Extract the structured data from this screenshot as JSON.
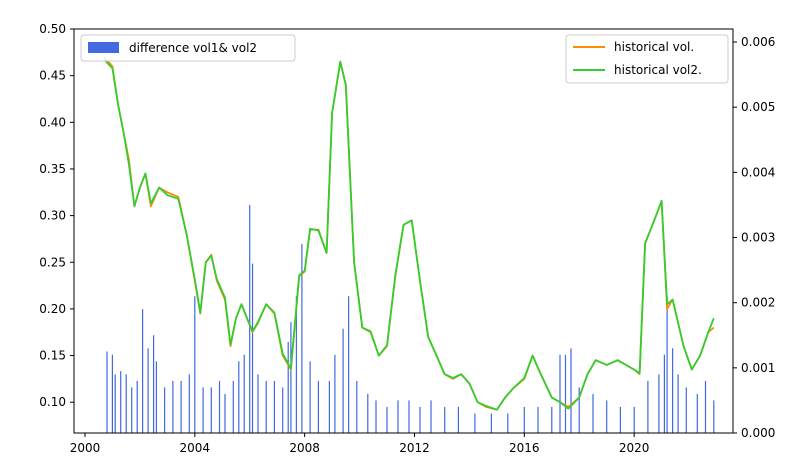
{
  "chart_data": {
    "type": "line",
    "xlim": [
      1999.6,
      2023.6
    ],
    "xticks": [
      2000,
      2004,
      2008,
      2012,
      2016,
      2020
    ],
    "ylim_left": [
      0.067,
      0.5
    ],
    "yticks_left": [
      "0.10",
      "0.15",
      "0.20",
      "0.25",
      "0.30",
      "0.35",
      "0.40",
      "0.45",
      "0.50"
    ],
    "ylim_right": [
      0,
      0.0062
    ],
    "yticks_right": [
      "0.000",
      "0.001",
      "0.002",
      "0.003",
      "0.004",
      "0.005",
      "0.006"
    ],
    "legend_left": {
      "placement": "top-left",
      "label": "difference vol1& vol2",
      "color": "#4169E1"
    },
    "legend_right": {
      "placement": "top-right",
      "entries": [
        {
          "label": "historical vol.",
          "color": "#ff8c00"
        },
        {
          "label": "historical vol2.",
          "color": "#32cd32"
        }
      ]
    },
    "series": [
      {
        "name": "historical vol.",
        "axis": "left",
        "color": "#ff8c00",
        "x": [
          2000.7,
          2001.0,
          2001.2,
          2001.4,
          2001.6,
          2001.8,
          2002.0,
          2002.2,
          2002.4,
          2002.7,
          2003.0,
          2003.4,
          2003.7,
          2004.0,
          2004.2,
          2004.4,
          2004.6,
          2004.8,
          2005.1,
          2005.3,
          2005.5,
          2005.7,
          2005.9,
          2006.1,
          2006.3,
          2006.6,
          2006.9,
          2007.2,
          2007.5,
          2007.8,
          2008.0,
          2008.2,
          2008.5,
          2008.8,
          2009.0,
          2009.3,
          2009.5,
          2009.8,
          2010.1,
          2010.4,
          2010.7,
          2011.0,
          2011.3,
          2011.6,
          2011.9,
          2012.2,
          2012.5,
          2012.8,
          2013.1,
          2013.4,
          2013.7,
          2014.0,
          2014.3,
          2014.6,
          2015.0,
          2015.3,
          2015.6,
          2016.0,
          2016.3,
          2016.6,
          2017.0,
          2017.3,
          2017.6,
          2018.0,
          2018.3,
          2018.6,
          2019.0,
          2019.4,
          2019.7,
          2020.0,
          2020.2,
          2020.4,
          2020.8,
          2021.0,
          2021.2,
          2021.4,
          2021.8,
          2022.1,
          2022.4,
          2022.7,
          2022.9
        ],
        "values": [
          0.47,
          0.46,
          0.42,
          0.39,
          0.36,
          0.31,
          0.33,
          0.345,
          0.31,
          0.33,
          0.325,
          0.32,
          0.28,
          0.23,
          0.195,
          0.25,
          0.258,
          0.23,
          0.21,
          0.16,
          0.19,
          0.205,
          0.19,
          0.175,
          0.185,
          0.205,
          0.195,
          0.15,
          0.135,
          0.235,
          0.24,
          0.285,
          0.285,
          0.26,
          0.41,
          0.465,
          0.44,
          0.25,
          0.18,
          0.175,
          0.15,
          0.16,
          0.235,
          0.29,
          0.295,
          0.23,
          0.17,
          0.15,
          0.13,
          0.125,
          0.13,
          0.12,
          0.1,
          0.095,
          0.092,
          0.105,
          0.115,
          0.125,
          0.15,
          0.13,
          0.105,
          0.1,
          0.095,
          0.105,
          0.13,
          0.145,
          0.14,
          0.145,
          0.14,
          0.135,
          0.13,
          0.27,
          0.3,
          0.315,
          0.2,
          0.21,
          0.16,
          0.135,
          0.15,
          0.175,
          0.18
        ]
      },
      {
        "name": "historical vol2.",
        "axis": "left",
        "color": "#32cd32",
        "x": [
          2000.7,
          2001.0,
          2001.2,
          2001.4,
          2001.6,
          2001.8,
          2002.0,
          2002.2,
          2002.4,
          2002.7,
          2003.0,
          2003.4,
          2003.7,
          2004.0,
          2004.2,
          2004.4,
          2004.6,
          2004.8,
          2005.1,
          2005.3,
          2005.5,
          2005.7,
          2005.9,
          2006.1,
          2006.3,
          2006.6,
          2006.9,
          2007.2,
          2007.5,
          2007.8,
          2008.0,
          2008.2,
          2008.5,
          2008.8,
          2009.0,
          2009.3,
          2009.5,
          2009.8,
          2010.1,
          2010.4,
          2010.7,
          2011.0,
          2011.3,
          2011.6,
          2011.9,
          2012.2,
          2012.5,
          2012.8,
          2013.1,
          2013.4,
          2013.7,
          2014.0,
          2014.3,
          2014.6,
          2015.0,
          2015.3,
          2015.6,
          2016.0,
          2016.3,
          2016.6,
          2017.0,
          2017.3,
          2017.6,
          2018.0,
          2018.3,
          2018.6,
          2019.0,
          2019.4,
          2019.7,
          2020.0,
          2020.2,
          2020.4,
          2020.8,
          2021.0,
          2021.2,
          2021.4,
          2021.8,
          2022.1,
          2022.4,
          2022.7,
          2022.9
        ],
        "values": [
          0.467,
          0.458,
          0.42,
          0.39,
          0.355,
          0.31,
          0.33,
          0.345,
          0.313,
          0.33,
          0.322,
          0.318,
          0.28,
          0.232,
          0.196,
          0.25,
          0.257,
          0.232,
          0.212,
          0.162,
          0.19,
          0.205,
          0.19,
          0.176,
          0.186,
          0.205,
          0.196,
          0.152,
          0.136,
          0.236,
          0.241,
          0.286,
          0.284,
          0.26,
          0.41,
          0.465,
          0.44,
          0.25,
          0.18,
          0.176,
          0.15,
          0.161,
          0.236,
          0.29,
          0.295,
          0.23,
          0.17,
          0.15,
          0.13,
          0.126,
          0.13,
          0.12,
          0.1,
          0.096,
          0.092,
          0.105,
          0.115,
          0.126,
          0.15,
          0.13,
          0.105,
          0.1,
          0.093,
          0.105,
          0.13,
          0.145,
          0.14,
          0.145,
          0.14,
          0.135,
          0.131,
          0.27,
          0.3,
          0.316,
          0.205,
          0.21,
          0.16,
          0.135,
          0.15,
          0.175,
          0.19
        ]
      },
      {
        "name": "difference vol1& vol2",
        "axis": "right",
        "type": "bar",
        "color": "#4169E1",
        "x": [
          2000.8,
          2001.0,
          2001.1,
          2001.3,
          2001.5,
          2001.7,
          2001.9,
          2002.1,
          2002.3,
          2002.5,
          2002.6,
          2002.9,
          2003.2,
          2003.5,
          2003.8,
          2004.0,
          2004.3,
          2004.6,
          2004.9,
          2005.1,
          2005.4,
          2005.6,
          2005.8,
          2006.0,
          2006.1,
          2006.3,
          2006.6,
          2006.9,
          2007.2,
          2007.4,
          2007.5,
          2007.7,
          2007.9,
          2008.2,
          2008.5,
          2008.9,
          2009.1,
          2009.4,
          2009.6,
          2009.9,
          2010.3,
          2010.6,
          2011.0,
          2011.4,
          2011.8,
          2012.2,
          2012.6,
          2013.1,
          2013.6,
          2014.2,
          2014.8,
          2015.4,
          2016.0,
          2016.5,
          2017.0,
          2017.3,
          2017.5,
          2017.7,
          2018.0,
          2018.5,
          2019.0,
          2019.5,
          2020.0,
          2020.5,
          2020.9,
          2021.1,
          2021.2,
          2021.4,
          2021.6,
          2021.9,
          2022.3,
          2022.6,
          2022.9
        ],
        "values": [
          0.00125,
          0.0012,
          0.0009,
          0.00095,
          0.0009,
          0.0007,
          0.0008,
          0.0019,
          0.0013,
          0.0015,
          0.0011,
          0.0007,
          0.0008,
          0.0008,
          0.0009,
          0.0021,
          0.0007,
          0.0007,
          0.0008,
          0.0006,
          0.0008,
          0.0011,
          0.0012,
          0.0035,
          0.0026,
          0.0009,
          0.0008,
          0.0008,
          0.0007,
          0.0014,
          0.0017,
          0.0021,
          0.0029,
          0.0011,
          0.0008,
          0.0008,
          0.0012,
          0.0016,
          0.0021,
          0.0008,
          0.0006,
          0.0005,
          0.0004,
          0.0005,
          0.0005,
          0.0004,
          0.0005,
          0.0004,
          0.0004,
          0.0003,
          0.0003,
          0.0003,
          0.0004,
          0.0004,
          0.0004,
          0.0012,
          0.0012,
          0.0013,
          0.0007,
          0.0006,
          0.0005,
          0.0004,
          0.0004,
          0.0008,
          0.0009,
          0.0012,
          0.0021,
          0.0013,
          0.0009,
          0.0007,
          0.0006,
          0.0008,
          0.0005
        ]
      }
    ]
  }
}
